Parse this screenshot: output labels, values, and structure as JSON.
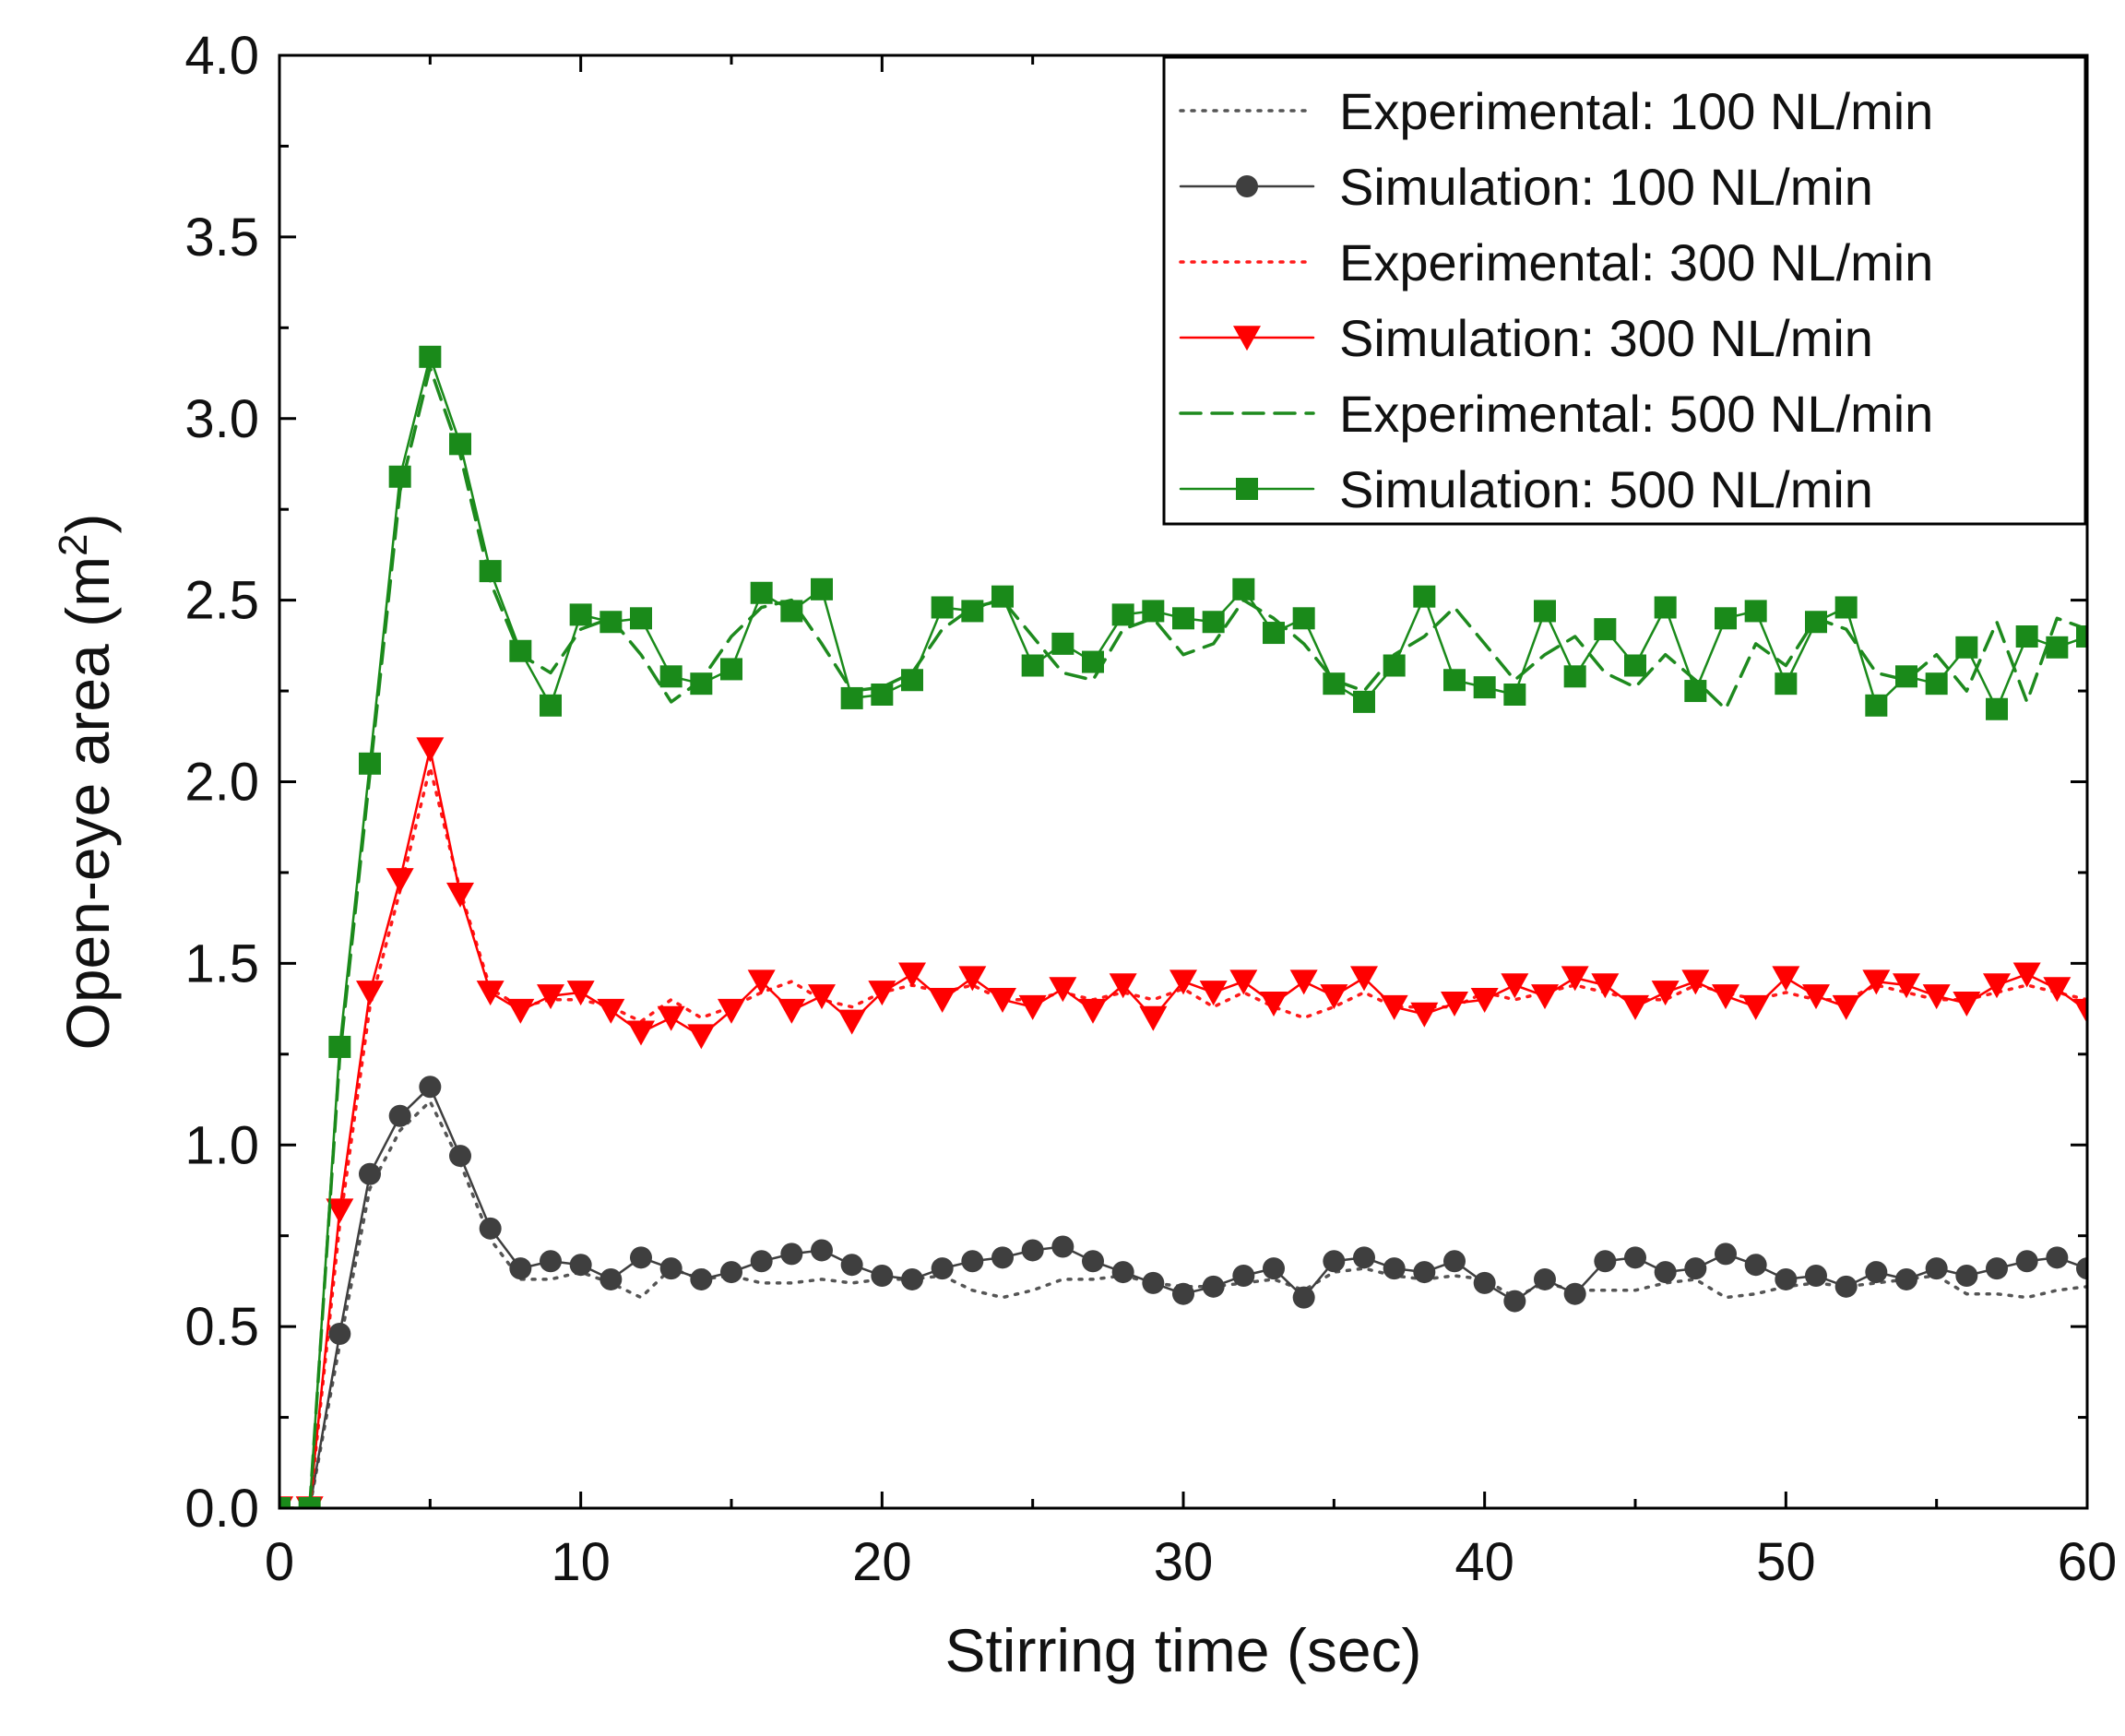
{
  "chart_data": {
    "type": "line",
    "title": "",
    "xlabel": "Stirring time (sec)",
    "ylabel": {
      "prefix": "Open-eye area (m",
      "sup": "2",
      "suffix": ")"
    },
    "xlim": [
      0,
      60
    ],
    "ylim": [
      0,
      4
    ],
    "x_ticks": [
      "0",
      "10",
      "20",
      "30",
      "40",
      "50",
      "60"
    ],
    "y_ticks": [
      "0.0",
      "0.5",
      "1.0",
      "1.5",
      "2.0",
      "2.5",
      "3.0",
      "3.5",
      "4.0"
    ],
    "legend_position": "top-right",
    "x": [
      0,
      1,
      2,
      3,
      4,
      5,
      6,
      7,
      8,
      9,
      10,
      11,
      12,
      13,
      14,
      15,
      16,
      17,
      18,
      19,
      20,
      21,
      22,
      23,
      24,
      25,
      26,
      27,
      28,
      29,
      30,
      31,
      32,
      33,
      34,
      35,
      36,
      37,
      38,
      39,
      40,
      41,
      42,
      43,
      44,
      45,
      46,
      47,
      48,
      49,
      50,
      51,
      52,
      53,
      54,
      55,
      56,
      57,
      58,
      59,
      60
    ],
    "series": [
      {
        "name": "Experimental: 100 NL/min",
        "style": "dotted",
        "marker": "none",
        "color": "#555555",
        "values": [
          0,
          0,
          0.45,
          0.88,
          1.04,
          1.12,
          0.95,
          0.74,
          0.63,
          0.63,
          0.65,
          0.62,
          0.58,
          0.66,
          0.63,
          0.64,
          0.62,
          0.62,
          0.63,
          0.62,
          0.63,
          0.63,
          0.64,
          0.6,
          0.58,
          0.6,
          0.63,
          0.63,
          0.64,
          0.62,
          0.61,
          0.61,
          0.62,
          0.63,
          0.6,
          0.65,
          0.66,
          0.64,
          0.63,
          0.64,
          0.63,
          0.58,
          0.62,
          0.6,
          0.6,
          0.6,
          0.62,
          0.63,
          0.58,
          0.59,
          0.61,
          0.62,
          0.61,
          0.62,
          0.63,
          0.64,
          0.59,
          0.59,
          0.58,
          0.6,
          0.61
        ]
      },
      {
        "name": "Simulation: 100 NL/min",
        "style": "solid",
        "marker": "circle",
        "color": "#3f3f3f",
        "values": [
          0,
          0,
          0.48,
          0.92,
          1.08,
          1.16,
          0.97,
          0.77,
          0.66,
          0.68,
          0.67,
          0.63,
          0.69,
          0.66,
          0.63,
          0.65,
          0.68,
          0.7,
          0.71,
          0.67,
          0.64,
          0.63,
          0.66,
          0.68,
          0.69,
          0.71,
          0.72,
          0.68,
          0.65,
          0.62,
          0.59,
          0.61,
          0.64,
          0.66,
          0.58,
          0.68,
          0.69,
          0.66,
          0.65,
          0.68,
          0.62,
          0.57,
          0.63,
          0.59,
          0.68,
          0.69,
          0.65,
          0.66,
          0.7,
          0.67,
          0.63,
          0.64,
          0.61,
          0.65,
          0.63,
          0.66,
          0.64,
          0.66,
          0.68,
          0.69,
          0.66
        ]
      },
      {
        "name": "Experimental: 300 NL/min",
        "style": "dotted",
        "marker": "none",
        "color": "#ff1a1a",
        "values": [
          0,
          0,
          0.78,
          1.38,
          1.7,
          2.04,
          1.7,
          1.43,
          1.38,
          1.4,
          1.4,
          1.38,
          1.34,
          1.4,
          1.35,
          1.38,
          1.42,
          1.45,
          1.4,
          1.38,
          1.42,
          1.44,
          1.42,
          1.44,
          1.4,
          1.4,
          1.42,
          1.4,
          1.42,
          1.4,
          1.43,
          1.38,
          1.42,
          1.38,
          1.35,
          1.38,
          1.42,
          1.38,
          1.38,
          1.38,
          1.42,
          1.4,
          1.42,
          1.44,
          1.42,
          1.4,
          1.4,
          1.44,
          1.42,
          1.4,
          1.42,
          1.4,
          1.4,
          1.44,
          1.42,
          1.4,
          1.4,
          1.42,
          1.44,
          1.42,
          1.4
        ]
      },
      {
        "name": "Simulation: 300 NL/min",
        "style": "solid",
        "marker": "triangle-down",
        "color": "#ff0000",
        "values": [
          0,
          0,
          0.82,
          1.42,
          1.73,
          2.09,
          1.69,
          1.42,
          1.37,
          1.41,
          1.42,
          1.37,
          1.31,
          1.35,
          1.3,
          1.37,
          1.45,
          1.37,
          1.41,
          1.34,
          1.42,
          1.47,
          1.4,
          1.46,
          1.4,
          1.38,
          1.43,
          1.37,
          1.44,
          1.35,
          1.45,
          1.42,
          1.45,
          1.39,
          1.45,
          1.41,
          1.46,
          1.38,
          1.36,
          1.39,
          1.4,
          1.44,
          1.41,
          1.46,
          1.44,
          1.38,
          1.42,
          1.45,
          1.41,
          1.38,
          1.46,
          1.41,
          1.38,
          1.45,
          1.44,
          1.41,
          1.39,
          1.44,
          1.47,
          1.43,
          1.37
        ]
      },
      {
        "name": "Experimental: 500 NL/min",
        "style": "dashed",
        "marker": "none",
        "color": "#1e8a1e",
        "values": [
          0,
          0,
          1.24,
          2.02,
          2.8,
          3.14,
          2.9,
          2.55,
          2.35,
          2.3,
          2.42,
          2.45,
          2.35,
          2.22,
          2.28,
          2.4,
          2.48,
          2.5,
          2.38,
          2.25,
          2.26,
          2.3,
          2.42,
          2.48,
          2.5,
          2.4,
          2.3,
          2.28,
          2.42,
          2.45,
          2.35,
          2.38,
          2.5,
          2.45,
          2.38,
          2.28,
          2.25,
          2.35,
          2.4,
          2.48,
          2.38,
          2.28,
          2.35,
          2.4,
          2.3,
          2.26,
          2.35,
          2.28,
          2.2,
          2.38,
          2.32,
          2.45,
          2.42,
          2.3,
          2.28,
          2.35,
          2.25,
          2.44,
          2.22,
          2.45,
          2.42
        ]
      },
      {
        "name": "Simulation: 500 NL/min",
        "style": "solid",
        "marker": "square",
        "color": "#1a8a1a",
        "values": [
          0,
          0,
          1.27,
          2.05,
          2.84,
          3.17,
          2.93,
          2.58,
          2.36,
          2.21,
          2.46,
          2.44,
          2.45,
          2.29,
          2.27,
          2.31,
          2.52,
          2.47,
          2.53,
          2.23,
          2.24,
          2.28,
          2.48,
          2.47,
          2.51,
          2.32,
          2.38,
          2.33,
          2.46,
          2.47,
          2.45,
          2.44,
          2.53,
          2.41,
          2.45,
          2.27,
          2.22,
          2.32,
          2.51,
          2.28,
          2.26,
          2.24,
          2.47,
          2.29,
          2.42,
          2.32,
          2.48,
          2.25,
          2.45,
          2.47,
          2.27,
          2.44,
          2.48,
          2.21,
          2.29,
          2.27,
          2.37,
          2.2,
          2.4,
          2.37,
          2.4
        ]
      }
    ]
  }
}
